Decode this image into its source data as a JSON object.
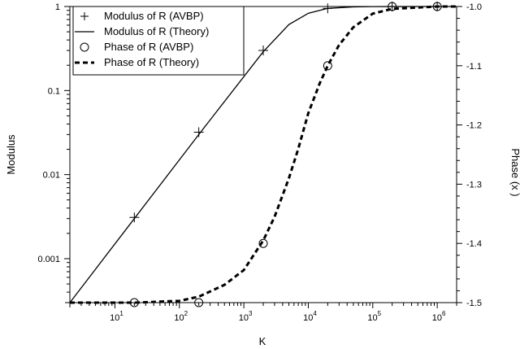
{
  "chart_data": {
    "type": "line",
    "title": "",
    "xlabel": "K",
    "ylabel": "Modulus",
    "ylabel_right": "Phase (x )",
    "x_scale": "log",
    "y_scale": "log",
    "xlim": [
      2,
      2000000
    ],
    "ylim": [
      0.0003,
      1
    ],
    "ylim_right": [
      -1.5,
      -1.0
    ],
    "grid": false,
    "legend_position": "top-left",
    "x_tick_labels": [
      {
        "base": "10",
        "exp": "1",
        "value": 10
      },
      {
        "base": "10",
        "exp": "2",
        "value": 100
      },
      {
        "base": "10",
        "exp": "3",
        "value": 1000
      },
      {
        "base": "10",
        "exp": "4",
        "value": 10000
      },
      {
        "base": "10",
        "exp": "5",
        "value": 100000
      },
      {
        "base": "10",
        "exp": "6",
        "value": 1000000
      }
    ],
    "y_tick_labels": [
      {
        "label": "0.001",
        "value": 0.001
      },
      {
        "label": "0.01",
        "value": 0.01
      },
      {
        "label": "0.1",
        "value": 0.1
      },
      {
        "label": "1",
        "value": 1
      }
    ],
    "y_right_tick_labels": [
      {
        "label": "-1.5",
        "value": -1.5
      },
      {
        "label": "-1.4",
        "value": -1.4
      },
      {
        "label": "-1.3",
        "value": -1.3
      },
      {
        "label": "-1.2",
        "value": -1.2
      },
      {
        "label": "-1.1",
        "value": -1.1
      },
      {
        "label": "-1.0",
        "value": -1.0
      }
    ],
    "series": [
      {
        "name": "Modulus of R (AVBP)",
        "axis": "left",
        "style": "plus-markers",
        "x": [
          2,
          20,
          200,
          2000,
          20000,
          200000,
          1000000
        ],
        "y": [
          0.0003,
          0.0031,
          0.032,
          0.3,
          0.95,
          1.0,
          1.0
        ]
      },
      {
        "name": "Modulus of R (Theory)",
        "axis": "left",
        "style": "solid-line",
        "x": [
          2,
          20,
          200,
          2000,
          5000,
          10000,
          20000,
          50000,
          100000,
          200000,
          1000000,
          2000000
        ],
        "y": [
          0.0003,
          0.003,
          0.03,
          0.29,
          0.61,
          0.83,
          0.95,
          0.99,
          0.997,
          0.999,
          1.0,
          1.0
        ]
      },
      {
        "name": "Phase of R (AVBP)",
        "axis": "right",
        "style": "circle-markers",
        "x": [
          20,
          200,
          2000,
          20000,
          200000,
          1000000
        ],
        "y": [
          -1.5,
          -1.5,
          -1.4,
          -1.1,
          -1.0,
          -1.0
        ]
      },
      {
        "name": "Phase of R (Theory)",
        "axis": "right",
        "style": "dashed-line",
        "x": [
          2,
          20,
          100,
          200,
          500,
          1000,
          2000,
          3000,
          5000,
          7000,
          10000,
          15000,
          20000,
          30000,
          50000,
          100000,
          200000,
          1000000,
          2000000
        ],
        "y": [
          -1.5,
          -1.5,
          -1.497,
          -1.49,
          -1.47,
          -1.445,
          -1.395,
          -1.355,
          -1.29,
          -1.24,
          -1.18,
          -1.13,
          -1.1,
          -1.065,
          -1.035,
          -1.012,
          -1.004,
          -1.0,
          -1.0
        ]
      }
    ],
    "legend": [
      {
        "label": "Modulus of R (AVBP)",
        "symbol": "plus"
      },
      {
        "label": "Modulus of R (Theory)",
        "symbol": "solid"
      },
      {
        "label": "Phase of R (AVBP)",
        "symbol": "circle"
      },
      {
        "label": "Phase of R (Theory)",
        "symbol": "dashed"
      }
    ]
  }
}
